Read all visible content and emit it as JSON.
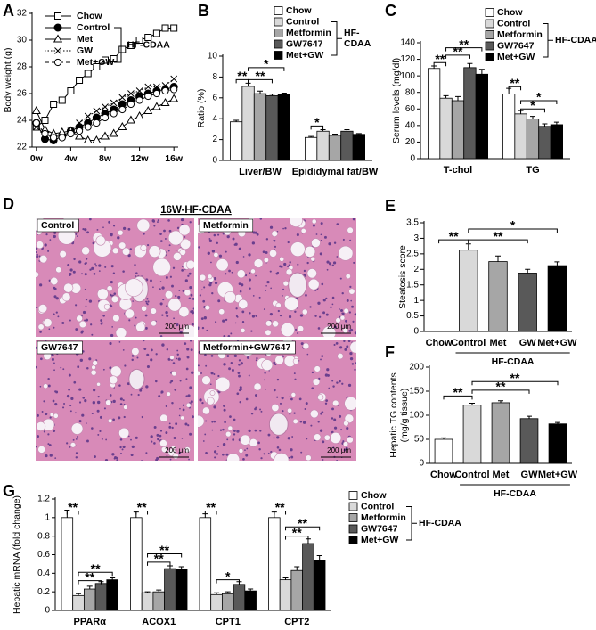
{
  "chart_data": [
    {
      "type": "line",
      "panel": "A",
      "ylabel": "Body weight (g)",
      "x": [
        0,
        1,
        2,
        3,
        4,
        5,
        6,
        7,
        8,
        9,
        10,
        11,
        12,
        13,
        14,
        15,
        16
      ],
      "xlim": [
        -0.5,
        16.5
      ],
      "xticks": [
        {
          "value": 0,
          "label": "0w"
        },
        {
          "value": 4,
          "label": "4w"
        },
        {
          "value": 8,
          "label": "8w"
        },
        {
          "value": 12,
          "label": "12w"
        },
        {
          "value": 16,
          "label": "16w"
        }
      ],
      "ylim": [
        22,
        32
      ],
      "yticks": [
        22,
        24,
        26,
        28,
        30,
        32
      ],
      "group_label": "HF-CDAA",
      "series": [
        {
          "name": "Chow",
          "color": "#000000",
          "marker": "square",
          "line_style": "solid",
          "values": [
            23.5,
            24,
            25.2,
            25.5,
            26.2,
            27,
            27.5,
            28,
            28.5,
            28.6,
            29.3,
            29.6,
            30,
            30.2,
            30.5,
            30.9,
            30.9
          ]
        },
        {
          "name": "Control",
          "color": "#000000",
          "marker": "filled-circle",
          "line_style": "solid",
          "values": [
            23.8,
            22.6,
            22.5,
            22.8,
            23.2,
            23.5,
            23.8,
            24.2,
            24.5,
            24.8,
            25.2,
            25.5,
            25.8,
            26,
            26.2,
            26.3,
            26.5
          ]
        },
        {
          "name": "Met",
          "color": "#000000",
          "marker": "triangle",
          "line_style": "solid",
          "values": [
            24.7,
            23.3,
            23,
            23.1,
            23.2,
            22.8,
            22.5,
            22.5,
            22.8,
            23,
            23.5,
            24,
            24.3,
            24.7,
            25,
            25.3,
            25.6
          ]
        },
        {
          "name": "GW",
          "color": "#000000",
          "marker": "cross",
          "line_style": "dotted",
          "values": [
            23.5,
            22.8,
            22.5,
            22.8,
            23.2,
            23.8,
            24.3,
            24.7,
            25,
            25.3,
            25.7,
            26,
            26.2,
            26.5,
            26.5,
            26.6,
            27.1
          ]
        },
        {
          "name": "Met+GW",
          "color": "#000000",
          "marker": "circle",
          "line_style": "dashed",
          "values": [
            23.8,
            23,
            22.7,
            22.7,
            23,
            23.2,
            23.5,
            23.8,
            24.2,
            24.5,
            24.8,
            25.2,
            25.5,
            25.8,
            26,
            26.2,
            26.3
          ]
        }
      ]
    },
    {
      "type": "bar",
      "panel": "B",
      "ylabel": "Ratio (%)",
      "categories": [
        "Liver/BW",
        "Epididymal fat/BW"
      ],
      "ylim": [
        0,
        10
      ],
      "yticks": [
        0,
        2,
        4,
        6,
        8,
        10
      ],
      "group_label": [
        "HF-",
        "CDAA"
      ],
      "annotations": [
        "**",
        "**",
        "*",
        "*"
      ],
      "series": [
        {
          "name": "Chow",
          "color": "#ffffff",
          "values": [
            3.7,
            2.2
          ],
          "errors": [
            0.15,
            0.1
          ]
        },
        {
          "name": "Control",
          "color": "#d9d9d9",
          "values": [
            7.1,
            2.8
          ],
          "errors": [
            0.3,
            0.15
          ]
        },
        {
          "name": "Metformin",
          "color": "#a6a6a6",
          "values": [
            6.4,
            2.4
          ],
          "errors": [
            0.25,
            0.12
          ]
        },
        {
          "name": "GW7647",
          "color": "#595959",
          "values": [
            6.2,
            2.8
          ],
          "errors": [
            0.15,
            0.15
          ]
        },
        {
          "name": "Met+GW",
          "color": "#000000",
          "values": [
            6.3,
            2.5
          ],
          "errors": [
            0.15,
            0.08
          ]
        }
      ]
    },
    {
      "type": "bar",
      "panel": "C",
      "ylabel": "Serum levels (mg/dl)",
      "categories": [
        "T-chol",
        "TG"
      ],
      "ylim": [
        0,
        140
      ],
      "yticks": [
        0,
        20,
        40,
        60,
        80,
        100,
        120,
        140
      ],
      "group_label": "HF-CDAA",
      "annotations": [
        "**",
        "**",
        "**",
        "**",
        "*",
        "*"
      ],
      "series": [
        {
          "name": "Chow",
          "color": "#ffffff",
          "values": [
            109,
            78
          ],
          "errors": [
            3,
            7
          ]
        },
        {
          "name": "Control",
          "color": "#d9d9d9",
          "values": [
            73,
            54
          ],
          "errors": [
            3,
            4
          ]
        },
        {
          "name": "Metformin",
          "color": "#a6a6a6",
          "values": [
            70,
            48
          ],
          "errors": [
            5,
            3
          ]
        },
        {
          "name": "GW7647",
          "color": "#595959",
          "values": [
            110,
            39
          ],
          "errors": [
            5,
            3
          ]
        },
        {
          "name": "Met+GW",
          "color": "#000000",
          "values": [
            102,
            41
          ],
          "errors": [
            6,
            3
          ]
        }
      ]
    },
    {
      "type": "bar",
      "panel": "E",
      "ylabel": "Steatosis score",
      "categories": [
        "Chow",
        "Control",
        "Met",
        "GW",
        "Met+GW"
      ],
      "values": [
        0,
        2.62,
        2.25,
        1.88,
        2.12
      ],
      "errors": [
        null,
        0.2,
        0.18,
        0.12,
        0.12
      ],
      "colors": [
        "#ffffff",
        "#d9d9d9",
        "#a6a6a6",
        "#595959",
        "#000000"
      ],
      "ylim": [
        0,
        3.5
      ],
      "yticks": [
        0,
        0.5,
        1,
        1.5,
        2,
        2.5,
        3,
        3.5
      ],
      "group_label": "HF-CDAA",
      "annotations": [
        "**",
        "**",
        "*"
      ]
    },
    {
      "type": "bar",
      "panel": "F",
      "ylabel": [
        "Hepatic TG contents",
        "(mg/g tissue)"
      ],
      "categories": [
        "Chow",
        "Control",
        "Met",
        "GW",
        "Met+GW"
      ],
      "values": [
        50,
        121,
        126,
        93,
        82
      ],
      "errors": [
        3,
        4,
        4,
        5,
        3
      ],
      "colors": [
        "#ffffff",
        "#d9d9d9",
        "#a6a6a6",
        "#595959",
        "#000000"
      ],
      "ylim": [
        0,
        200
      ],
      "yticks": [
        0,
        50,
        100,
        150,
        200
      ],
      "group_label": "HF-CDAA",
      "annotations": [
        "**",
        "**",
        "**"
      ]
    },
    {
      "type": "bar",
      "panel": "G",
      "ylabel": "Hepatic mRNA (fold change)",
      "categories": [
        "PPARα",
        "ACOX1",
        "CPT1",
        "CPT2"
      ],
      "ylim": [
        0,
        1.2
      ],
      "yticks": [
        0,
        0.2,
        0.4,
        0.6,
        0.8,
        1,
        1.2
      ],
      "group_label": "HF-CDAA",
      "annotations": [
        "**",
        "**",
        "**",
        "**",
        "**",
        "**",
        "**",
        "*",
        "**",
        "**",
        "**"
      ],
      "series": [
        {
          "name": "Chow",
          "color": "#ffffff",
          "values": [
            1.0,
            1.0,
            1.0,
            1.0
          ],
          "errors": [
            0.08,
            0.06,
            0.04,
            0.06
          ]
        },
        {
          "name": "Control",
          "color": "#d9d9d9",
          "values": [
            0.16,
            0.19,
            0.17,
            0.33
          ],
          "errors": [
            0.02,
            0.01,
            0.02,
            0.02
          ]
        },
        {
          "name": "Metformin",
          "color": "#a6a6a6",
          "values": [
            0.23,
            0.2,
            0.18,
            0.43
          ],
          "errors": [
            0.03,
            0.02,
            0.02,
            0.04
          ]
        },
        {
          "name": "GW7647",
          "color": "#595959",
          "values": [
            0.29,
            0.45,
            0.28,
            0.72
          ],
          "errors": [
            0.02,
            0.03,
            0.03,
            0.05
          ]
        },
        {
          "name": "Met+GW",
          "color": "#000000",
          "values": [
            0.33,
            0.44,
            0.21,
            0.54
          ],
          "errors": [
            0.02,
            0.03,
            0.02,
            0.05
          ]
        }
      ]
    }
  ],
  "histology": {
    "panel": "D",
    "title": "16W-HF-CDAA",
    "images": [
      {
        "label": "Control",
        "scale_bar": "200 μm"
      },
      {
        "label": "Metformin",
        "scale_bar": "200 μm"
      },
      {
        "label": "GW7647",
        "scale_bar": "200 μm"
      },
      {
        "label": "Metformin+GW7647",
        "scale_bar": "200 μm"
      }
    ]
  }
}
